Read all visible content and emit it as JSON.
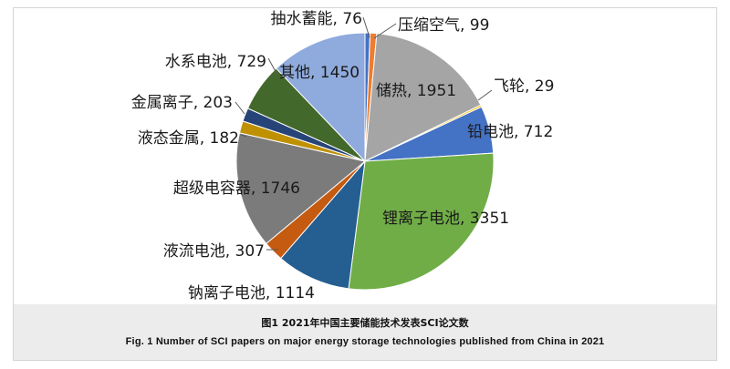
{
  "chart_data": {
    "type": "pie",
    "slices": [
      {
        "label": "抽水蓄能",
        "value": 76,
        "color": "#4472c4"
      },
      {
        "label": "压缩空气",
        "value": 99,
        "color": "#ed7d31"
      },
      {
        "label": "储热",
        "value": 1951,
        "color": "#a5a5a5"
      },
      {
        "label": "飞轮",
        "value": 29,
        "color": "#ffc000"
      },
      {
        "label": "铅电池",
        "value": 712,
        "color": "#4472c4"
      },
      {
        "label": "锂离子电池",
        "value": 3351,
        "color": "#70ad47"
      },
      {
        "label": "钠离子电池",
        "value": 1114,
        "color": "#255e91"
      },
      {
        "label": "液流电池",
        "value": 307,
        "color": "#c55a11"
      },
      {
        "label": "超级电容器",
        "value": 1746,
        "color": "#7b7b7b"
      },
      {
        "label": "液态金属",
        "value": 182,
        "color": "#bf9000"
      },
      {
        "label": "金属离子",
        "value": 203,
        "color": "#264478"
      },
      {
        "label": "水系电池",
        "value": 729,
        "color": "#43682b"
      },
      {
        "label": "其他",
        "value": 1450,
        "color": "#8faadc"
      }
    ],
    "label_separator": ", "
  },
  "caption": {
    "zh": "图1   2021年中国主要储能技术发表SCI论文数",
    "en": "Fig. 1   Number of SCI papers on major energy storage technologies published from China in 2021"
  }
}
